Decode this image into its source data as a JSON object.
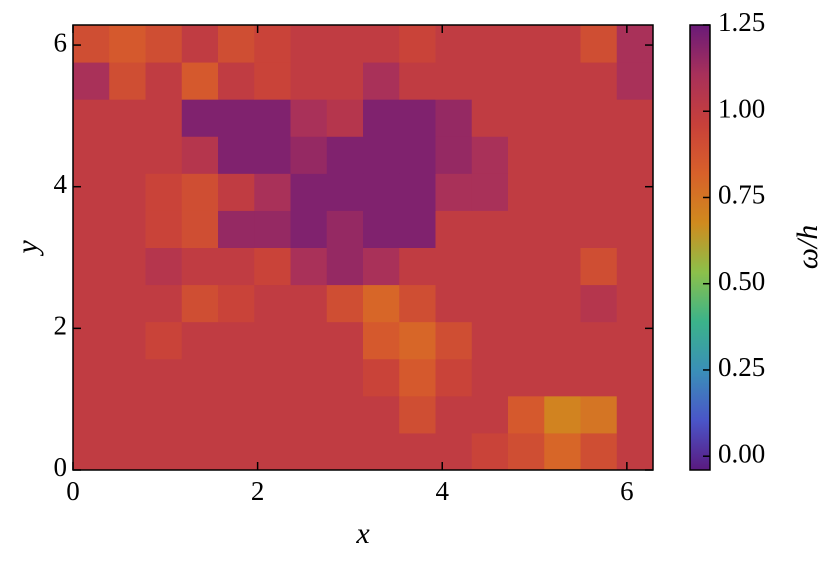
{
  "chart_data": {
    "type": "heatmap",
    "xlabel": "x",
    "ylabel": "y",
    "colorbar_label": "ω/h",
    "xlim": [
      0,
      6.2832
    ],
    "ylim": [
      0,
      6.2832
    ],
    "xticks": [
      0,
      2,
      4,
      6
    ],
    "yticks": [
      0,
      2,
      4,
      6
    ],
    "clim": [
      -0.04,
      1.25
    ],
    "cticks": [
      {
        "value": 0,
        "label": "0.00"
      },
      {
        "value": 0.25,
        "label": "0.25"
      },
      {
        "value": 0.5,
        "label": "0.50"
      },
      {
        "value": 0.75,
        "label": "0.75"
      },
      {
        "value": 1,
        "label": "1.00"
      },
      {
        "value": 1.25,
        "label": "1.25"
      }
    ],
    "colormap": [
      "#5a1a80",
      "#4a55c8",
      "#3a8fb8",
      "#3bb38a",
      "#8cc04a",
      "#d08a1e",
      "#d8602a",
      "#c8403a",
      "#a8305a",
      "#6a1a78"
    ],
    "z": [
      [
        1.0,
        1.0,
        1.0,
        1.0,
        1.0,
        1.0,
        1.0,
        1.0,
        1.0,
        1.0,
        1.0,
        0.95,
        0.9,
        0.8,
        0.9,
        1.0
      ],
      [
        1.0,
        1.0,
        1.0,
        1.0,
        1.0,
        1.0,
        1.0,
        1.0,
        1.0,
        0.9,
        1.0,
        1.0,
        0.85,
        0.7,
        0.75,
        1.0
      ],
      [
        1.0,
        1.0,
        1.0,
        1.0,
        1.0,
        1.0,
        1.0,
        1.0,
        0.95,
        0.85,
        0.95,
        1.0,
        1.0,
        1.0,
        1.0,
        1.0
      ],
      [
        1.0,
        1.0,
        0.95,
        1.0,
        1.0,
        1.0,
        1.0,
        1.0,
        0.85,
        0.8,
        0.9,
        1.0,
        1.0,
        1.0,
        1.0,
        1.0
      ],
      [
        1.0,
        1.0,
        1.0,
        0.9,
        0.95,
        1.0,
        1.0,
        0.9,
        0.8,
        0.9,
        1.0,
        1.0,
        1.0,
        1.0,
        1.05,
        1.0
      ],
      [
        1.0,
        1.0,
        1.05,
        1.0,
        1.0,
        0.95,
        1.1,
        1.15,
        1.1,
        1.0,
        1.0,
        1.0,
        1.0,
        1.0,
        0.9,
        1.0
      ],
      [
        1.0,
        1.0,
        0.95,
        0.9,
        1.15,
        1.15,
        1.2,
        1.15,
        1.2,
        1.2,
        1.0,
        1.0,
        1.0,
        1.0,
        1.0,
        1.0
      ],
      [
        1.0,
        1.0,
        0.95,
        0.9,
        1.0,
        1.1,
        1.2,
        1.2,
        1.2,
        1.2,
        1.1,
        1.1,
        1.0,
        1.0,
        1.0,
        1.0
      ],
      [
        1.0,
        1.0,
        1.0,
        1.05,
        1.2,
        1.2,
        1.15,
        1.2,
        1.2,
        1.2,
        1.15,
        1.1,
        1.0,
        1.0,
        1.0,
        1.0
      ],
      [
        1.0,
        1.0,
        1.0,
        1.2,
        1.2,
        1.2,
        1.1,
        1.05,
        1.2,
        1.2,
        1.15,
        1.0,
        1.0,
        1.0,
        1.0,
        1.0
      ],
      [
        1.1,
        0.9,
        1.0,
        0.85,
        1.0,
        0.95,
        1.0,
        1.0,
        1.1,
        1.0,
        1.0,
        1.0,
        1.0,
        1.0,
        1.0,
        1.1
      ],
      [
        0.9,
        0.85,
        0.9,
        1.0,
        0.9,
        0.95,
        1.0,
        1.0,
        1.0,
        0.95,
        1.0,
        1.0,
        1.0,
        1.0,
        0.9,
        1.1
      ]
    ]
  }
}
